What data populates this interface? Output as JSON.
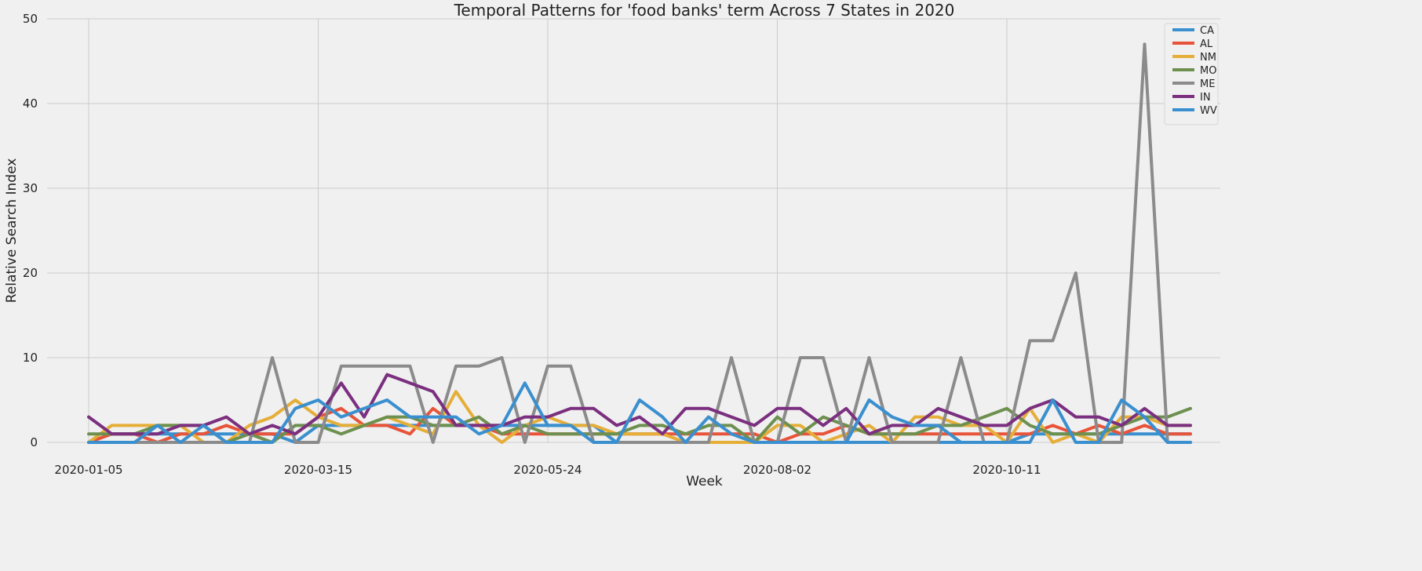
{
  "chart_data": {
    "type": "line",
    "title": "Temporal Patterns for 'food banks' term Across 7 States in 2020",
    "xlabel": "Week",
    "ylabel": "Relative Search Index",
    "ylim": [
      0,
      50
    ],
    "yticks": [
      0,
      10,
      20,
      30,
      40,
      50
    ],
    "xticks": [
      "2020-01-05",
      "2020-03-15",
      "2020-05-24",
      "2020-08-02",
      "2020-10-11"
    ],
    "xtick_positions": [
      0,
      10,
      20,
      30,
      40
    ],
    "grid": true,
    "legend_position": "top-right",
    "x": [
      "2020-01-05",
      "2020-01-12",
      "2020-01-19",
      "2020-01-26",
      "2020-02-02",
      "2020-02-09",
      "2020-02-16",
      "2020-02-23",
      "2020-03-01",
      "2020-03-08",
      "2020-03-15",
      "2020-03-22",
      "2020-03-29",
      "2020-04-05",
      "2020-04-12",
      "2020-04-19",
      "2020-04-26",
      "2020-05-03",
      "2020-05-10",
      "2020-05-17",
      "2020-05-24",
      "2020-05-31",
      "2020-06-07",
      "2020-06-14",
      "2020-06-21",
      "2020-06-28",
      "2020-07-05",
      "2020-07-12",
      "2020-07-19",
      "2020-07-26",
      "2020-08-02",
      "2020-08-09",
      "2020-08-16",
      "2020-08-23",
      "2020-08-30",
      "2020-09-06",
      "2020-09-13",
      "2020-09-20",
      "2020-09-27",
      "2020-10-04",
      "2020-10-11",
      "2020-10-18",
      "2020-10-25",
      "2020-11-01",
      "2020-11-08",
      "2020-11-15",
      "2020-11-22",
      "2020-11-29",
      "2020-12-06"
    ],
    "series": [
      {
        "name": "CA",
        "color": "#3a8fcf",
        "values": [
          0,
          1,
          1,
          1,
          1,
          1,
          1,
          1,
          1,
          0,
          2,
          2,
          2,
          2,
          2,
          2,
          2,
          2,
          2,
          2,
          2,
          2,
          2,
          0,
          0,
          0,
          0,
          0,
          0,
          0,
          0,
          0,
          0,
          0,
          0,
          0,
          0,
          0,
          0,
          0,
          0,
          1,
          1,
          1,
          1,
          1,
          1,
          1,
          1
        ]
      },
      {
        "name": "AL",
        "color": "#e8543a",
        "values": [
          0,
          1,
          1,
          0,
          1,
          1,
          2,
          1,
          1,
          1,
          3,
          4,
          2,
          2,
          1,
          4,
          2,
          2,
          1,
          1,
          1,
          1,
          1,
          1,
          1,
          1,
          1,
          1,
          1,
          1,
          0,
          1,
          1,
          2,
          1,
          1,
          1,
          1,
          1,
          1,
          1,
          1,
          2,
          1,
          2,
          1,
          2,
          1,
          1
        ]
      },
      {
        "name": "NM",
        "color": "#e5ae38",
        "values": [
          0,
          2,
          2,
          2,
          2,
          0,
          0,
          2,
          3,
          5,
          3,
          2,
          2,
          3,
          2,
          1,
          6,
          2,
          0,
          2,
          3,
          2,
          2,
          1,
          1,
          1,
          0,
          0,
          0,
          0,
          2,
          2,
          0,
          1,
          2,
          0,
          3,
          3,
          2,
          2,
          0,
          4,
          0,
          1,
          0,
          3,
          3,
          2,
          2
        ]
      },
      {
        "name": "MO",
        "color": "#6d904f",
        "values": [
          1,
          1,
          1,
          2,
          2,
          2,
          0,
          1,
          0,
          2,
          2,
          1,
          2,
          3,
          3,
          2,
          2,
          3,
          1,
          2,
          1,
          1,
          1,
          1,
          2,
          2,
          1,
          2,
          2,
          0,
          3,
          1,
          3,
          2,
          1,
          1,
          1,
          2,
          2,
          3,
          4,
          2,
          1,
          1,
          1,
          2,
          3,
          3,
          4
        ]
      },
      {
        "name": "ME",
        "color": "#8b8b8b",
        "values": [
          0,
          0,
          0,
          0,
          0,
          0,
          0,
          0,
          10,
          0,
          0,
          9,
          9,
          9,
          9,
          0,
          9,
          9,
          10,
          0,
          9,
          9,
          0,
          0,
          0,
          0,
          0,
          0,
          10,
          0,
          0,
          10,
          10,
          0,
          10,
          0,
          0,
          0,
          10,
          0,
          0,
          12,
          12,
          20,
          0,
          0,
          47,
          0,
          0
        ]
      },
      {
        "name": "IN",
        "color": "#7b2f7f",
        "values": [
          3,
          1,
          1,
          1,
          2,
          2,
          3,
          1,
          2,
          1,
          3,
          7,
          3,
          8,
          7,
          6,
          2,
          2,
          2,
          3,
          3,
          4,
          4,
          2,
          3,
          1,
          4,
          4,
          3,
          2,
          4,
          4,
          2,
          4,
          1,
          2,
          2,
          4,
          3,
          2,
          2,
          4,
          5,
          3,
          3,
          2,
          4,
          2,
          2
        ]
      },
      {
        "name": "WV",
        "color": "#3a8fcf",
        "values": [
          0,
          0,
          0,
          2,
          0,
          2,
          0,
          0,
          0,
          4,
          5,
          3,
          4,
          5,
          3,
          3,
          3,
          1,
          2,
          7,
          2,
          2,
          0,
          0,
          5,
          3,
          0,
          3,
          1,
          0,
          0,
          0,
          0,
          0,
          5,
          3,
          2,
          2,
          0,
          0,
          0,
          0,
          5,
          0,
          0,
          5,
          3,
          0,
          0
        ]
      }
    ]
  }
}
